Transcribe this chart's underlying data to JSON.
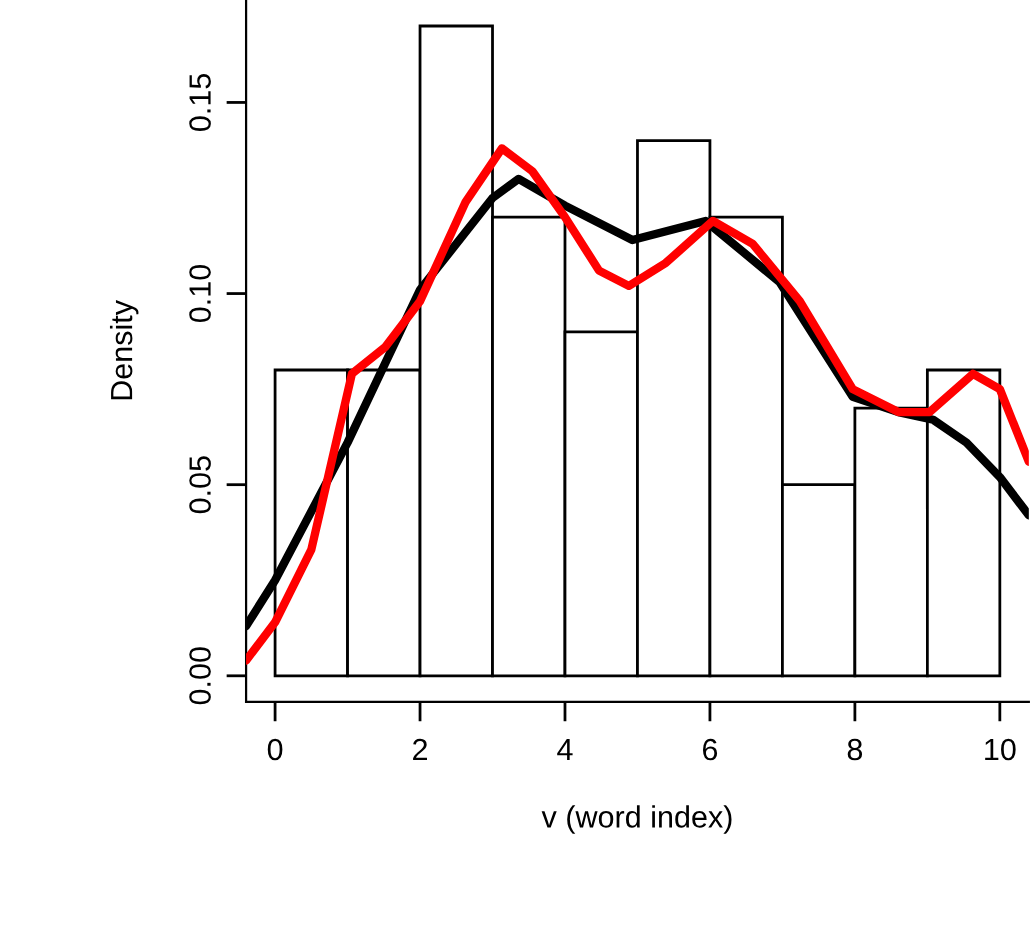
{
  "chart_data": {
    "type": "histogram",
    "xlabel": "v (word index)",
    "ylabel": "Density",
    "bins": [
      0,
      1,
      2,
      3,
      4,
      5,
      6,
      7,
      8,
      9,
      10
    ],
    "values": [
      0.08,
      0.08,
      0.17,
      0.12,
      0.09,
      0.14,
      0.12,
      0.05,
      0.07,
      0.08
    ],
    "color": "#ffffff",
    "series": [
      {
        "type": "line",
        "color": "#000000",
        "x": [
          -0.4,
          0,
          1,
          2,
          3,
          3.36,
          4,
          4.93,
          5.94,
          6.96,
          7.97,
          8.6,
          9.08,
          9.54,
          10,
          10.4
        ],
        "values": [
          0.013,
          0.025,
          0.061,
          0.101,
          0.125,
          0.13,
          0.123,
          0.114,
          0.119,
          0.103,
          0.073,
          0.069,
          0.067,
          0.061,
          0.052,
          0.042
        ]
      },
      {
        "type": "line",
        "color": "#ff0000",
        "x": [
          -0.4,
          0,
          0.5,
          1.06,
          1.52,
          2,
          2.63,
          3.13,
          3.55,
          4,
          4.47,
          4.88,
          5.39,
          6.04,
          6.59,
          7.24,
          7.97,
          8.6,
          9.03,
          9.63,
          10,
          10.4
        ],
        "values": [
          0.004,
          0.014,
          0.033,
          0.079,
          0.086,
          0.098,
          0.124,
          0.138,
          0.132,
          0.12,
          0.106,
          0.102,
          0.108,
          0.119,
          0.113,
          0.098,
          0.075,
          0.069,
          0.069,
          0.079,
          0.075,
          0.056
        ]
      }
    ],
    "xlim": [
      -0.4,
      10.4
    ],
    "ylim": [
      -0.0068,
      0.1768
    ],
    "xticks": [
      0,
      2,
      4,
      6,
      8,
      10
    ],
    "yticks": [
      {
        "value": 0,
        "label": "0.00"
      },
      {
        "value": 0.05,
        "label": "0.05"
      },
      {
        "value": 0.1,
        "label": "0.10"
      },
      {
        "value": 0.15,
        "label": "0.15"
      }
    ],
    "grid": false,
    "legend": false,
    "line_style": "solid",
    "marker": "none"
  }
}
